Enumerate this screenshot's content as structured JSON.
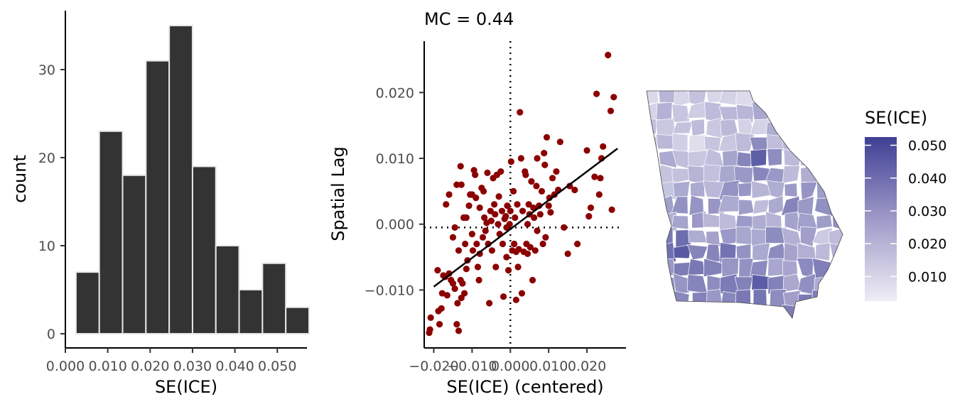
{
  "colors": {
    "bar_fill": "#333333",
    "bar_stroke": "#e6e6e6",
    "point": "#8b0000",
    "fit_line": "#000000",
    "map_low": "#efedf5",
    "map_high": "#3f3f95"
  },
  "chart_data": [
    {
      "type": "bar",
      "subtype": "histogram",
      "title": "",
      "xlabel": "SE(ICE)",
      "ylabel": "count",
      "bins": [
        {
          "x0": 0.0025,
          "x1": 0.008,
          "count": 7
        },
        {
          "x0": 0.008,
          "x1": 0.0135,
          "count": 23
        },
        {
          "x0": 0.0135,
          "x1": 0.019,
          "count": 18
        },
        {
          "x0": 0.019,
          "x1": 0.0245,
          "count": 31
        },
        {
          "x0": 0.0245,
          "x1": 0.03,
          "count": 35
        },
        {
          "x0": 0.03,
          "x1": 0.0355,
          "count": 19
        },
        {
          "x0": 0.0355,
          "x1": 0.041,
          "count": 10
        },
        {
          "x0": 0.041,
          "x1": 0.0465,
          "count": 5
        },
        {
          "x0": 0.0465,
          "x1": 0.052,
          "count": 8
        },
        {
          "x0": 0.052,
          "x1": 0.0575,
          "count": 3
        }
      ],
      "xlim": [
        0.0,
        0.057
      ],
      "ylim": [
        0,
        36.5
      ],
      "xticks": [
        0.0,
        0.01,
        0.02,
        0.03,
        0.04,
        0.05
      ],
      "xtick_labels": [
        "0.000",
        "0.010",
        "0.020",
        "0.030",
        "0.040",
        "0.050"
      ],
      "yticks": [
        0,
        10,
        20,
        30
      ],
      "ytick_labels": [
        "0",
        "10",
        "20",
        "30"
      ],
      "grid": false
    },
    {
      "type": "scatter",
      "title": "MC = 0.44",
      "xlabel": "SE(ICE) (centered)",
      "ylabel": "Spatial Lag",
      "xlim": [
        -0.0225,
        0.0302
      ],
      "ylim": [
        -0.0188,
        0.0278
      ],
      "xticks": [
        -0.02,
        -0.01,
        0.0,
        0.01,
        0.02
      ],
      "xtick_labels": [
        "−0.020",
        "−0.010",
        "0.000",
        "0.010",
        "0.020"
      ],
      "yticks": [
        -0.01,
        0.0,
        0.01,
        0.02
      ],
      "ytick_labels": [
        "−0.010",
        "0.000",
        "0.010",
        "0.020"
      ],
      "vline_x": 0.0,
      "hline_y": -0.0005,
      "fit_line": {
        "x": [
          -0.02,
          0.028
        ],
        "y": [
          -0.0095,
          0.0115
        ]
      },
      "grid": false,
      "points": [
        [
          -0.0212,
          -0.0165
        ],
        [
          -0.021,
          -0.016
        ],
        [
          -0.0208,
          -0.0142
        ],
        [
          -0.0188,
          -0.0132
        ],
        [
          -0.0185,
          -0.0152
        ],
        [
          -0.018,
          -0.0128
        ],
        [
          -0.0178,
          -0.0105
        ],
        [
          -0.0175,
          -0.0078
        ],
        [
          -0.0165,
          -0.0108
        ],
        [
          -0.016,
          -0.0075
        ],
        [
          -0.015,
          -0.009
        ],
        [
          -0.0145,
          -0.0098
        ],
        [
          -0.014,
          -0.0152
        ],
        [
          -0.0138,
          -0.012
        ],
        [
          -0.0135,
          -0.0162
        ],
        [
          -0.013,
          -0.0085
        ],
        [
          -0.0128,
          -0.0112
        ],
        [
          -0.012,
          -0.0105
        ],
        [
          -0.0115,
          -0.0068
        ],
        [
          -0.0112,
          -0.0055
        ],
        [
          -0.019,
          -0.007
        ],
        [
          -0.017,
          -0.008
        ],
        [
          -0.0125,
          -0.009
        ],
        [
          -0.0155,
          -0.0085
        ],
        [
          -0.0168,
          0.003
        ],
        [
          -0.016,
          0.0045
        ],
        [
          -0.015,
          -0.002
        ],
        [
          -0.0145,
          -0.0005
        ],
        [
          -0.014,
          0.006
        ],
        [
          -0.0135,
          -0.004
        ],
        [
          -0.013,
          0.0088
        ],
        [
          -0.0128,
          0.006
        ],
        [
          -0.0122,
          0.001
        ],
        [
          -0.0118,
          -0.003
        ],
        [
          -0.0115,
          0.001
        ],
        [
          -0.0108,
          0.0028
        ],
        [
          -0.0105,
          0.0045
        ],
        [
          -0.01,
          -0.0015
        ],
        [
          -0.0098,
          -0.004
        ],
        [
          -0.0095,
          0.0082
        ],
        [
          -0.0092,
          0.0075
        ],
        [
          -0.009,
          0.004
        ],
        [
          -0.0088,
          -0.003
        ],
        [
          -0.0085,
          -0.0065
        ],
        [
          -0.0082,
          -0.0085
        ],
        [
          -0.008,
          0.0025
        ],
        [
          -0.0075,
          0.0055
        ],
        [
          -0.0072,
          -0.002
        ],
        [
          -0.007,
          0.005
        ],
        [
          -0.0068,
          0.001
        ],
        [
          -0.0065,
          -0.001
        ],
        [
          -0.0062,
          0.0002
        ],
        [
          -0.006,
          0.0078
        ],
        [
          -0.0058,
          -0.003
        ],
        [
          -0.0055,
          -0.012
        ],
        [
          -0.0052,
          0.002
        ],
        [
          -0.005,
          0.0005
        ],
        [
          -0.0048,
          -0.004
        ],
        [
          -0.0045,
          0.007
        ],
        [
          -0.0042,
          0.003
        ],
        [
          -0.004,
          0.0015
        ],
        [
          -0.0038,
          -0.0065
        ],
        [
          -0.0035,
          0.0075
        ],
        [
          -0.0032,
          0.0
        ],
        [
          -0.003,
          0.0042
        ],
        [
          -0.0028,
          -0.0015
        ],
        [
          -0.0025,
          0.008
        ],
        [
          -0.0022,
          0.002
        ],
        [
          -0.002,
          -0.003
        ],
        [
          -0.0018,
          -0.011
        ],
        [
          -0.0015,
          0.0008
        ],
        [
          -0.0012,
          0.0012
        ],
        [
          -0.001,
          -0.0005
        ],
        [
          -0.0008,
          0.0028
        ],
        [
          -0.0005,
          -0.007
        ],
        [
          -0.0002,
          0.0
        ],
        [
          0.0,
          0.002
        ],
        [
          0.0002,
          0.0095
        ],
        [
          0.0005,
          -0.004
        ],
        [
          0.0008,
          0.005
        ],
        [
          0.001,
          -0.003
        ],
        [
          0.0012,
          0.001
        ],
        [
          0.0015,
          -0.0042
        ],
        [
          0.0018,
          0.003
        ],
        [
          0.002,
          -0.0065
        ],
        [
          0.0022,
          -0.0038
        ],
        [
          0.0025,
          0.017
        ],
        [
          0.0028,
          0.01
        ],
        [
          0.003,
          -0.0105
        ],
        [
          0.0032,
          0.002
        ],
        [
          0.0035,
          -0.0042
        ],
        [
          0.0038,
          0.008
        ],
        [
          0.004,
          0.0075
        ],
        [
          0.0042,
          -0.003
        ],
        [
          0.0045,
          0.0
        ],
        [
          0.0048,
          0.003
        ],
        [
          0.005,
          0.0015
        ],
        [
          0.0052,
          -0.0035
        ],
        [
          0.0055,
          0.0065
        ],
        [
          0.0058,
          -0.0085
        ],
        [
          0.006,
          0.0025
        ],
        [
          0.0062,
          0.001
        ],
        [
          0.0065,
          -0.004
        ],
        [
          0.0068,
          0.0058
        ],
        [
          0.007,
          -0.001
        ],
        [
          0.0075,
          0.0028
        ],
        [
          0.0078,
          0.0015
        ],
        [
          0.0082,
          0.005
        ],
        [
          0.0085,
          -0.003
        ],
        [
          0.0088,
          0.0108
        ],
        [
          0.009,
          0.009
        ],
        [
          0.0092,
          -0.002
        ],
        [
          0.0095,
          0.0132
        ],
        [
          0.01,
          0.0028
        ],
        [
          0.0102,
          0.004
        ],
        [
          0.0105,
          0.0018
        ],
        [
          0.011,
          0.007
        ],
        [
          0.0115,
          0.0045
        ],
        [
          0.012,
          0.008
        ],
        [
          0.0125,
          0.0052
        ],
        [
          0.013,
          0.0125
        ],
        [
          0.014,
          -0.0005
        ],
        [
          0.015,
          -0.0045
        ],
        [
          0.0155,
          0.0058
        ],
        [
          0.0168,
          0.0052
        ],
        [
          0.0175,
          -0.003
        ],
        [
          0.02,
          0.0112
        ],
        [
          0.0205,
          0.0012
        ],
        [
          0.021,
          0.0025
        ],
        [
          0.022,
          0.0072
        ],
        [
          0.0225,
          0.0198
        ],
        [
          0.0232,
          0.0045
        ],
        [
          0.0235,
          0.007
        ],
        [
          0.0238,
          0.01
        ],
        [
          0.0242,
          0.0118
        ],
        [
          0.0255,
          0.0257
        ],
        [
          0.0262,
          0.0172
        ],
        [
          0.0265,
          0.0022
        ],
        [
          0.027,
          0.0193
        ],
        [
          -0.001,
          -0.005
        ],
        [
          0.0015,
          -0.0115
        ],
        [
          0.0045,
          -0.0045
        ],
        [
          -0.01,
          0.0045
        ],
        [
          -0.008,
          -0.0045
        ],
        [
          0.007,
          0.01
        ]
      ]
    },
    {
      "type": "heatmap",
      "subtype": "choropleth",
      "title": "",
      "legend_title": "SE(ICE)",
      "legend_placement": "right",
      "legend_min": 0.0025,
      "legend_max": 0.0525,
      "legend_ticks": [
        0.01,
        0.02,
        0.03,
        0.04,
        0.05
      ],
      "legend_tick_labels": [
        "0.010",
        "0.020",
        "0.030",
        "0.040",
        "0.050"
      ]
    }
  ]
}
